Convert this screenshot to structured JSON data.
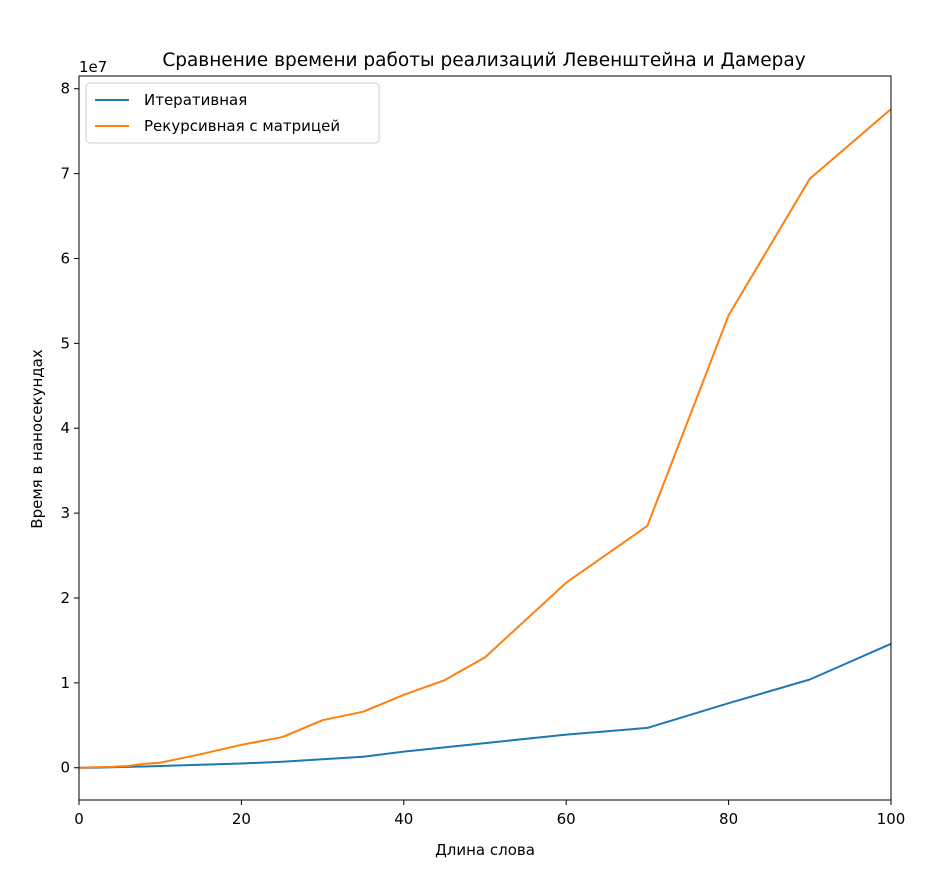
{
  "chart_data": {
    "type": "line",
    "title": "Сравнение времени работы реализаций Левенштейна и Дамерау",
    "xlabel": "Длина слова",
    "ylabel": "Время в наносекундах",
    "y_offset_label": "1e7",
    "xlim": [
      0,
      100
    ],
    "ylim": [
      -0.38,
      8.15
    ],
    "x_ticks": [
      0,
      20,
      40,
      60,
      80,
      100
    ],
    "y_ticks": [
      0,
      1,
      2,
      3,
      4,
      5,
      6,
      7,
      8
    ],
    "legend_position": "upper-left",
    "grid": false,
    "series": [
      {
        "name": "Итеративная",
        "color": "#1f77b4",
        "x": [
          0,
          2,
          4,
          6,
          8,
          10,
          15,
          20,
          25,
          30,
          35,
          40,
          45,
          50,
          60,
          70,
          80,
          90,
          100
        ],
        "y": [
          0.0,
          0.0,
          0.005,
          0.01,
          0.015,
          0.02,
          0.035,
          0.05,
          0.07,
          0.1,
          0.13,
          0.19,
          0.24,
          0.29,
          0.39,
          0.47,
          0.76,
          1.04,
          1.46
        ]
      },
      {
        "name": "Рекурсивная с матрицей",
        "color": "#ff7f0e",
        "x": [
          0,
          2,
          4,
          6,
          8,
          10,
          15,
          20,
          25,
          30,
          35,
          40,
          45,
          50,
          60,
          70,
          80,
          90,
          100
        ],
        "y": [
          0.0,
          0.005,
          0.01,
          0.02,
          0.045,
          0.06,
          0.16,
          0.27,
          0.36,
          0.56,
          0.66,
          0.86,
          1.03,
          1.3,
          2.18,
          2.85,
          5.33,
          6.94,
          7.76
        ]
      }
    ]
  }
}
